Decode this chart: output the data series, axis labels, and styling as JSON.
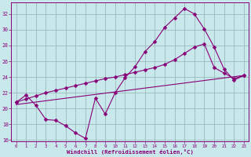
{
  "xlabel": "Windchill (Refroidissement éolien,°C)",
  "bg_color": "#c8e8ec",
  "line_color": "#880077",
  "grid_color": "#99bbbb",
  "xlim": [
    0,
    23
  ],
  "ylim": [
    16,
    33
  ],
  "yticks": [
    16,
    18,
    20,
    22,
    24,
    26,
    28,
    30,
    32
  ],
  "xticks": [
    0,
    1,
    2,
    3,
    4,
    5,
    6,
    7,
    8,
    9,
    10,
    11,
    12,
    13,
    14,
    15,
    16,
    17,
    18,
    19,
    20,
    21,
    22,
    23
  ],
  "line1_x": [
    0,
    1,
    2,
    3,
    4,
    5,
    6,
    7,
    8,
    9,
    10,
    11,
    12,
    13,
    14,
    15,
    16,
    17,
    18,
    19,
    20,
    21,
    22,
    23
  ],
  "line1_y": [
    20.8,
    21.7,
    20.4,
    18.6,
    18.5,
    17.8,
    16.9,
    16.2,
    21.3,
    19.3,
    22.0,
    23.9,
    25.3,
    27.2,
    28.5,
    30.3,
    31.5,
    32.7,
    32.0,
    30.1,
    27.8,
    25.0,
    23.6,
    24.2
  ],
  "line2_x": [
    0,
    1,
    2,
    3,
    4,
    5,
    6,
    7,
    8,
    9,
    10,
    11,
    12,
    13,
    14,
    15,
    16,
    17,
    18,
    19,
    20,
    21,
    22,
    23
  ],
  "line2_y": [
    20.8,
    21.2,
    21.6,
    22.0,
    22.3,
    22.6,
    22.9,
    23.2,
    23.5,
    23.8,
    24.0,
    24.3,
    24.6,
    24.9,
    25.2,
    25.6,
    26.2,
    27.0,
    27.8,
    28.2,
    25.2,
    24.5,
    23.8,
    24.2
  ],
  "line3_x": [
    0,
    23
  ],
  "line3_y": [
    20.5,
    24.2
  ]
}
